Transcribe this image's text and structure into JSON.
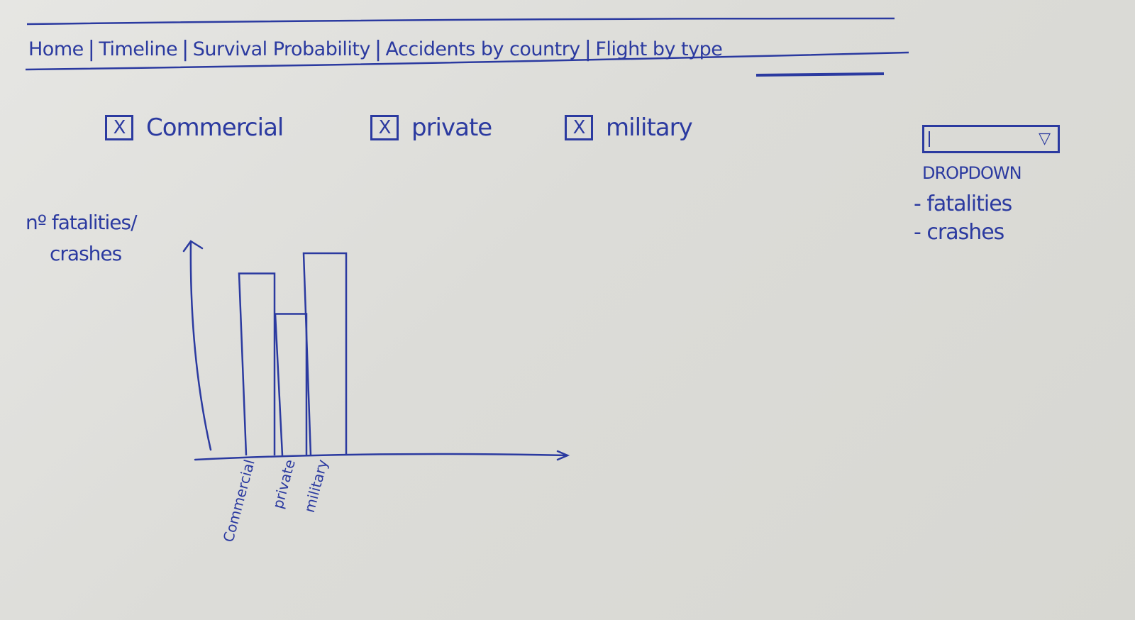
{
  "nav": {
    "items": [
      {
        "label": "Home"
      },
      {
        "label": "Timeline"
      },
      {
        "label": "Survival Probability"
      },
      {
        "label": "Accidents by country"
      },
      {
        "label": "Flight by type",
        "active": true
      }
    ],
    "separator": "|"
  },
  "filters": [
    {
      "label": "Commercial",
      "checked": true
    },
    {
      "label": "private",
      "checked": true
    },
    {
      "label": "military",
      "checked": true
    }
  ],
  "checkbox_mark": "X",
  "dropdown": {
    "label": "DROPDOWN",
    "arrow": "▽",
    "options": [
      "- fatalities",
      "- crashes"
    ]
  },
  "ylabel_line1": "nº fatalities/",
  "ylabel_line2": "crashes",
  "chart_data": {
    "type": "bar",
    "categories": [
      "Commercial",
      "private",
      "military"
    ],
    "values": [
      90,
      70,
      100
    ],
    "ylim": [
      0,
      120
    ],
    "ylabel": "nº fatalities/ crashes",
    "grid": false
  },
  "colors": {
    "ink": "#2b3aa0",
    "paper": "#e0e0dc"
  }
}
